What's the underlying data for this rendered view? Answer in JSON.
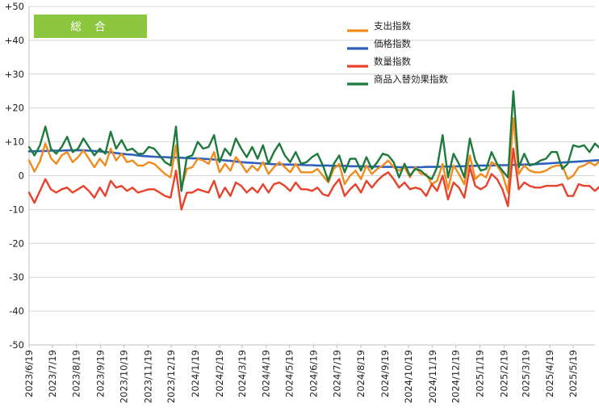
{
  "chart_data": {
    "type": "line",
    "title": "総 合",
    "title_box_color": "#8cc63f",
    "ylim": [
      -50,
      50
    ],
    "yticks": [
      "+50",
      "+40",
      "+30",
      "+20",
      "+10",
      "0",
      "-10",
      "-20",
      "-30",
      "-40",
      "-50"
    ],
    "ytick_values": [
      50,
      40,
      30,
      20,
      10,
      0,
      -10,
      -20,
      -30,
      -40,
      -50
    ],
    "grid": true,
    "legend_position": "top-right",
    "x_start": "2023-06-19",
    "x_end": "2025-06-16",
    "xtick_labels": [
      "2023/6/19",
      "2023/7/19",
      "2023/8/19",
      "2023/9/19",
      "2023/10/19",
      "2023/11/19",
      "2023/12/19",
      "2024/1/19",
      "2024/2/19",
      "2024/3/19",
      "2024/4/19",
      "2024/5/19",
      "2024/6/19",
      "2024/7/19",
      "2024/8/19",
      "2024/9/19",
      "2024/10/19",
      "2024/11/19",
      "2024/12/19",
      "2025/1/19",
      "2025/2/19",
      "2025/3/19",
      "2025/4/19",
      "2025/5/19"
    ],
    "series": [
      {
        "name": "支出指数",
        "color": "#f08c1e",
        "values": [
          4.5,
          1.2,
          4.3,
          9.5,
          5.2,
          3.5,
          6.0,
          7.0,
          4.0,
          5.5,
          7.5,
          5.0,
          2.5,
          5.0,
          3.0,
          8.0,
          4.5,
          6.5,
          4.0,
          4.5,
          3.0,
          3.0,
          4.0,
          3.5,
          2.0,
          0.5,
          -0.5,
          9.0,
          -3.5,
          2.0,
          2.5,
          5.0,
          4.5,
          3.5,
          7.0,
          1.0,
          3.5,
          1.5,
          5.5,
          3.5,
          1.0,
          3.0,
          1.5,
          4.0,
          0.5,
          2.5,
          4.0,
          2.5,
          1.0,
          3.5,
          1.0,
          1.0,
          1.0,
          2.0,
          0.0,
          -2.0,
          2.0,
          3.5,
          -2.5,
          0.0,
          1.5,
          -1.0,
          3.0,
          0.5,
          2.0,
          3.0,
          4.5,
          2.5,
          1.5,
          2.5,
          -0.5,
          2.5,
          0.5,
          0.5,
          -2.5,
          -1.5,
          3.5,
          -4.0,
          3.0,
          0.5,
          -2.5,
          6.0,
          -1.0,
          0.5,
          -0.5,
          4.0,
          3.0,
          0.5,
          -5.0,
          17.0,
          0.5,
          3.0,
          1.5,
          1.0,
          1.0,
          1.5,
          2.5,
          3.0,
          3.0,
          -1.0,
          0.0,
          2.5,
          3.0,
          4.0,
          3.0,
          4.5,
          2.5,
          4.0,
          1.5,
          1.0,
          2.5,
          1.0,
          0.5,
          3.5,
          4.0,
          -2.0
        ]
      },
      {
        "name": "価格指数",
        "color": "#2d5fbd",
        "values": [
          7.2,
          7.2,
          7.3,
          7.3,
          7.4,
          7.4,
          7.4,
          7.5,
          7.5,
          7.5,
          7.5,
          7.4,
          7.3,
          7.2,
          7.0,
          6.9,
          6.7,
          6.5,
          6.3,
          6.2,
          6.0,
          5.8,
          5.7,
          5.6,
          5.5,
          5.5,
          5.4,
          5.4,
          5.3,
          5.2,
          5.1,
          5.1,
          5.0,
          4.9,
          4.8,
          4.7,
          4.5,
          4.4,
          4.2,
          4.0,
          3.9,
          3.8,
          3.7,
          3.6,
          3.5,
          3.4,
          3.4,
          3.3,
          3.3,
          3.2,
          3.2,
          3.1,
          3.1,
          3.0,
          3.0,
          3.0,
          2.9,
          2.9,
          2.9,
          2.8,
          2.8,
          2.8,
          2.7,
          2.7,
          2.7,
          2.6,
          2.6,
          2.6,
          2.5,
          2.5,
          2.5,
          2.5,
          2.5,
          2.6,
          2.6,
          2.6,
          2.7,
          2.7,
          2.7,
          2.8,
          2.8,
          2.9,
          2.9,
          3.0,
          3.0,
          3.0,
          3.1,
          3.1,
          3.1,
          3.2,
          3.2,
          3.3,
          3.3,
          3.4,
          3.5,
          3.6,
          3.7,
          3.8,
          3.9,
          4.0,
          4.1,
          4.2,
          4.3,
          4.4,
          4.5,
          4.6,
          4.7,
          4.8,
          4.9,
          5.0,
          5.0,
          5.1,
          5.1,
          5.1,
          5.2,
          5.2
        ]
      },
      {
        "name": "数量指数",
        "color": "#e8412c",
        "values": [
          -5.0,
          -8.0,
          -4.5,
          -1.0,
          -4.0,
          -5.0,
          -4.0,
          -3.5,
          -5.0,
          -4.0,
          -3.0,
          -4.5,
          -6.5,
          -3.5,
          -6.0,
          -1.5,
          -3.5,
          -3.0,
          -4.5,
          -3.5,
          -5.0,
          -4.5,
          -4.0,
          -4.0,
          -5.0,
          -6.0,
          -6.5,
          1.5,
          -10.0,
          -5.0,
          -5.0,
          -4.0,
          -4.5,
          -5.0,
          -1.5,
          -6.5,
          -3.5,
          -6.0,
          -2.0,
          -3.0,
          -5.0,
          -3.5,
          -5.0,
          -2.5,
          -5.0,
          -2.5,
          -2.0,
          -3.0,
          -4.5,
          -2.0,
          -4.0,
          -4.0,
          -4.5,
          -3.5,
          -5.5,
          -6.0,
          -3.0,
          -1.0,
          -6.0,
          -4.0,
          -2.5,
          -5.0,
          -1.5,
          -3.5,
          -1.5,
          0.0,
          1.0,
          -1.0,
          -3.5,
          -2.0,
          -4.0,
          -3.5,
          -4.0,
          -6.0,
          -2.5,
          -4.5,
          0.0,
          -7.0,
          -2.0,
          -3.5,
          -6.5,
          2.5,
          -3.0,
          -4.0,
          -3.0,
          0.5,
          -1.0,
          -4.0,
          -9.0,
          8.0,
          -4.0,
          -2.0,
          -3.0,
          -3.5,
          -3.5,
          -3.0,
          -3.0,
          -3.0,
          -2.5,
          -6.0,
          -6.0,
          -2.5,
          -3.0,
          -3.0,
          -4.5,
          -3.0,
          -5.0,
          -3.0,
          -5.0,
          -6.0,
          -5.0,
          -5.5,
          -7.0,
          -4.5,
          -4.5,
          -9.0
        ]
      },
      {
        "name": "商品入替効果指数",
        "color": "#1e7a3c",
        "values": [
          8.5,
          6.0,
          9.0,
          14.5,
          8.0,
          6.5,
          8.5,
          11.5,
          7.0,
          8.0,
          11.0,
          8.5,
          6.0,
          8.0,
          6.5,
          13.0,
          8.0,
          10.5,
          7.5,
          8.0,
          6.5,
          6.5,
          8.5,
          8.0,
          6.0,
          4.0,
          3.0,
          14.5,
          -4.5,
          5.5,
          6.0,
          10.0,
          8.0,
          8.5,
          12.0,
          4.0,
          8.0,
          6.0,
          11.0,
          8.0,
          5.5,
          8.5,
          5.0,
          9.0,
          3.5,
          7.0,
          9.5,
          6.0,
          4.0,
          7.0,
          3.5,
          4.0,
          5.5,
          6.5,
          3.0,
          -1.5,
          3.5,
          6.0,
          1.0,
          5.0,
          5.0,
          1.5,
          5.5,
          2.0,
          4.0,
          6.5,
          6.0,
          4.0,
          -0.5,
          3.5,
          0.0,
          2.0,
          1.5,
          0.0,
          -1.0,
          2.5,
          12.0,
          -0.5,
          6.5,
          3.5,
          -0.5,
          11.0,
          4.5,
          1.5,
          2.0,
          7.0,
          3.5,
          1.5,
          -0.5,
          25.0,
          2.5,
          6.5,
          3.0,
          3.5,
          4.5,
          5.0,
          7.0,
          7.0,
          2.0,
          3.5,
          9.0,
          8.5,
          9.0,
          7.0,
          9.5,
          8.0,
          6.5,
          8.5,
          7.5,
          5.5,
          8.5,
          9.5,
          2.5
        ]
      }
    ]
  }
}
